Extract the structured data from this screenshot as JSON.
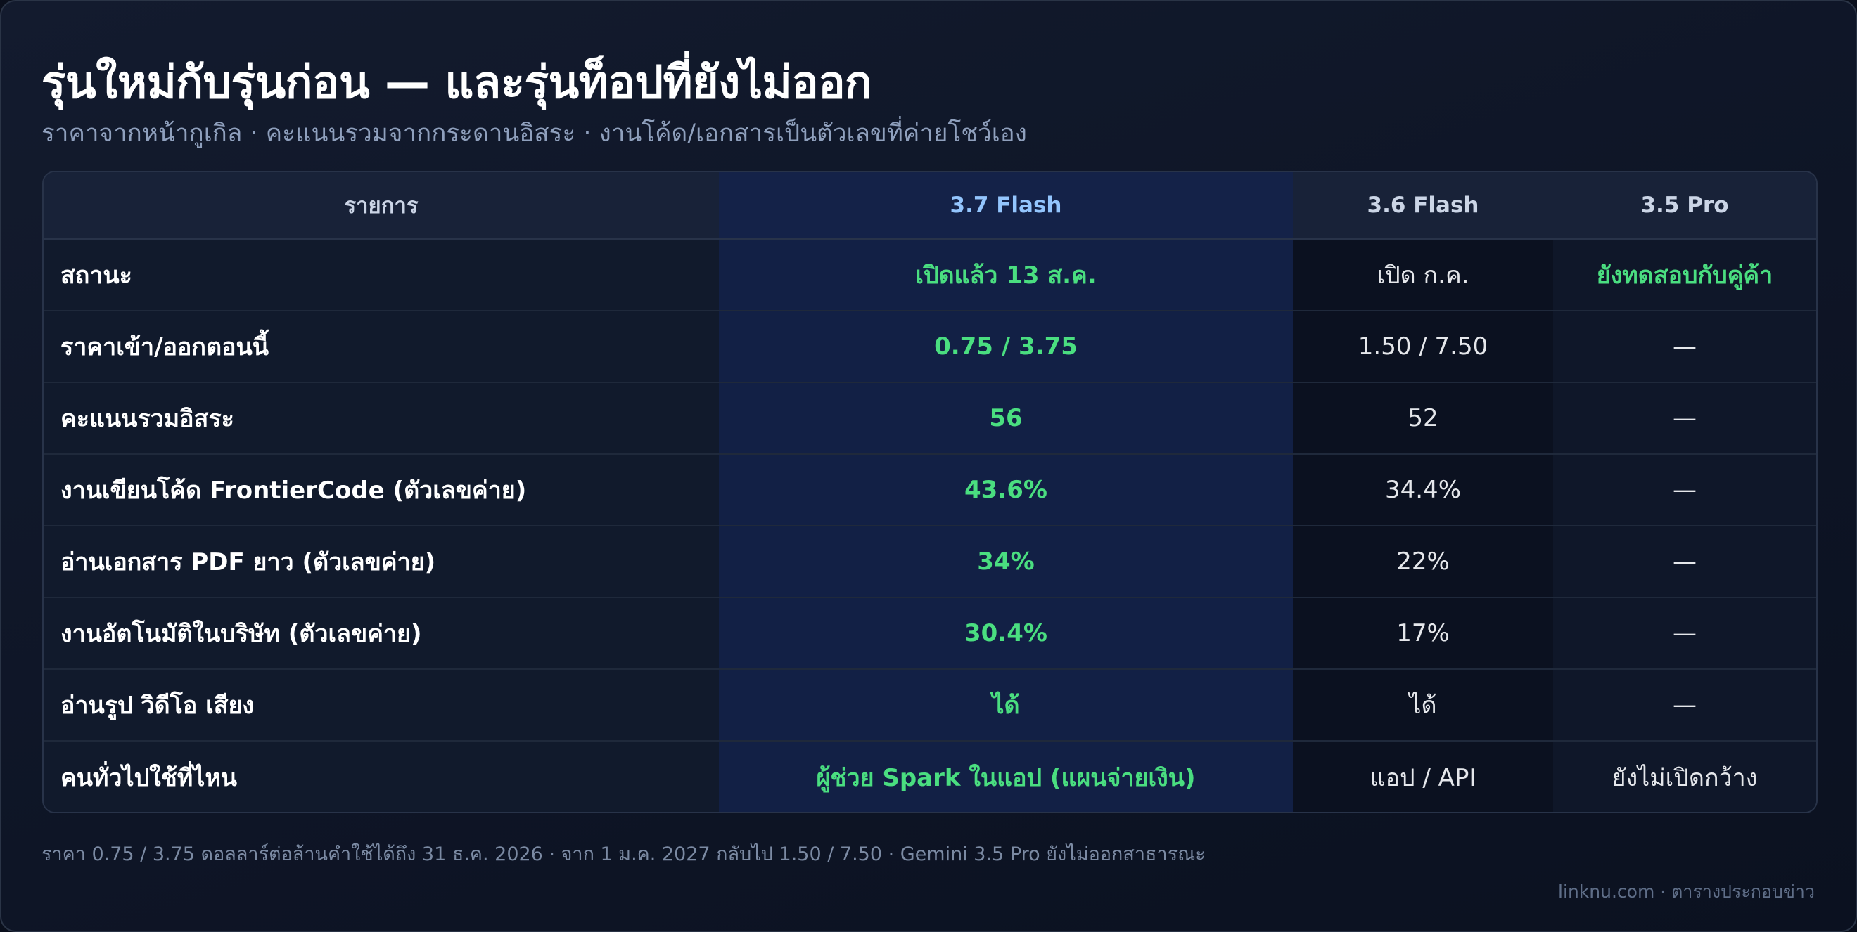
{
  "title": "รุ่นใหม่กับรุ่นก่อน — และรุ่นท็อปที่ยังไม่ออก",
  "subtitle": "ราคาจากหน้ากูเกิล · คะแนนรวมจากกระดานอิสระ · งานโค้ด/เอกสารเป็นตัวเลขที่ค่ายโชว์เอง",
  "table": {
    "headers": [
      "รายการ",
      "3.7 Flash",
      "3.6 Flash",
      "3.5 Pro"
    ],
    "rows": [
      {
        "label": "สถานะ",
        "flash37": "เปิดแล้ว 13 ส.ค.",
        "flash36": "เปิด ก.ค.",
        "pro35": "ยังทดสอบกับคู่ค้า"
      },
      {
        "label": "ราคาเข้า/ออกตอนนี้",
        "flash37": "0.75 / 3.75",
        "flash36": "1.50 / 7.50",
        "pro35": "—"
      },
      {
        "label": "คะแนนรวมอิสระ",
        "flash37": "56",
        "flash36": "52",
        "pro35": "—"
      },
      {
        "label": "งานเขียนโค้ด FrontierCode (ตัวเลขค่าย)",
        "flash37": "43.6%",
        "flash36": "34.4%",
        "pro35": "—"
      },
      {
        "label": "อ่านเอกสาร PDF ยาว (ตัวเลขค่าย)",
        "flash37": "34%",
        "flash36": "22%",
        "pro35": "—"
      },
      {
        "label": "งานอัตโนมัติในบริษัท (ตัวเลขค่าย)",
        "flash37": "30.4%",
        "flash36": "17%",
        "pro35": "—"
      },
      {
        "label": "อ่านรูป วิดีโอ เสียง",
        "flash37": "ได้",
        "flash36": "ได้",
        "pro35": "—"
      },
      {
        "label": "คนทั่วไปใช้ที่ไหน",
        "flash37": "ผู้ช่วย Spark ในแอป (แผนจ่ายเงิน)",
        "flash36": "แอป / API",
        "pro35": "ยังไม่เปิดกว้าง"
      }
    ]
  },
  "footnote": "ราคา 0.75 / 3.75 ดอลลาร์ต่อล้านคำใช้ได้ถึง 31 ธ.ค. 2026 · จาก 1 ม.ค. 2027 กลับไป 1.50 / 7.50 · Gemini 3.5 Pro ยังไม่ออกสาธารณะ",
  "credit": "linknu.com · ตารางประกอบข่าว",
  "colors": {
    "accent_green": "#4ade80",
    "accent_blue": "#93c5fd",
    "highlight_column": "#122045",
    "background": "#0e1526"
  }
}
